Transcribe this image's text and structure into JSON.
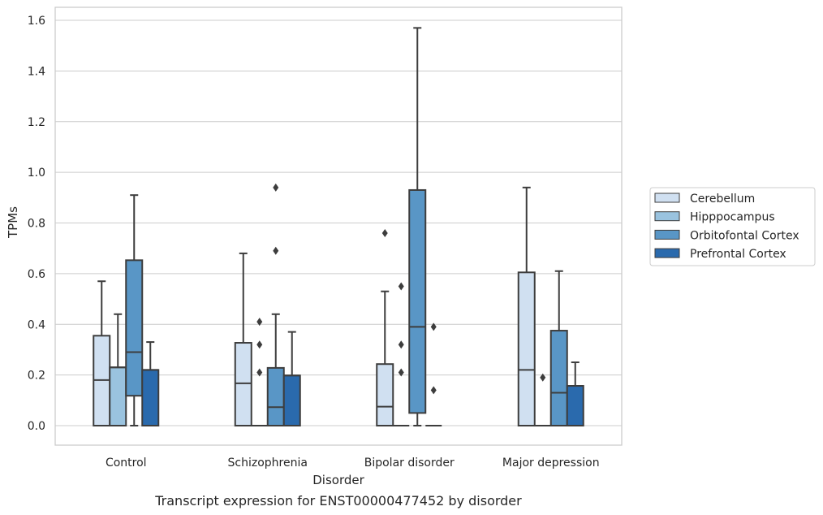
{
  "chart_data": {
    "type": "box",
    "caption": "Transcript expression for ENST00000477452 by disorder",
    "xlabel": "Disorder",
    "ylabel": "TPMs",
    "ylim": [
      -0.08,
      1.65
    ],
    "yticks": [
      0.0,
      0.2,
      0.4,
      0.6,
      0.8,
      1.0,
      1.2,
      1.4,
      1.6
    ],
    "ytick_labels": [
      "0.0",
      "0.2",
      "0.4",
      "0.6",
      "0.8",
      "1.0",
      "1.2",
      "1.4",
      "1.6"
    ],
    "grid": "horizontal",
    "legend_position": "right",
    "categories": [
      "Control",
      "Schizophrenia",
      "Bipolar disorder",
      "Major depression"
    ],
    "series": [
      {
        "name": "Cerebellum",
        "color": "#d0e0f1",
        "boxes": [
          {
            "whisker_low": 0.0,
            "q1": 0.0,
            "median": 0.18,
            "q3": 0.355,
            "whisker_high": 0.57,
            "outliers": []
          },
          {
            "whisker_low": 0.0,
            "q1": 0.0,
            "median": 0.167,
            "q3": 0.327,
            "whisker_high": 0.68,
            "outliers": []
          },
          {
            "whisker_low": 0.0,
            "q1": 0.0,
            "median": 0.075,
            "q3": 0.243,
            "whisker_high": 0.53,
            "outliers": [
              0.76
            ]
          },
          {
            "whisker_low": 0.0,
            "q1": 0.0,
            "median": 0.22,
            "q3": 0.605,
            "whisker_high": 0.94,
            "outliers": []
          }
        ]
      },
      {
        "name": "Hipppocampus",
        "color": "#9ac3df",
        "boxes": [
          {
            "whisker_low": 0.0,
            "q1": 0.0,
            "median": 0.23,
            "q3": 0.23,
            "whisker_high": 0.44,
            "outliers": []
          },
          {
            "whisker_low": 0.0,
            "q1": 0.0,
            "median": 0.0,
            "q3": 0.0,
            "whisker_high": 0.0,
            "outliers": [
              0.21,
              0.32,
              0.41
            ]
          },
          {
            "whisker_low": 0.0,
            "q1": 0.0,
            "median": 0.0,
            "q3": 0.0,
            "whisker_high": 0.0,
            "outliers": [
              0.21,
              0.32,
              0.55
            ]
          },
          {
            "whisker_low": 0.0,
            "q1": 0.0,
            "median": 0.0,
            "q3": 0.0,
            "whisker_high": 0.0,
            "outliers": [
              0.19
            ]
          }
        ]
      },
      {
        "name": "Orbitofontal Cortex",
        "color": "#5996c6",
        "boxes": [
          {
            "whisker_low": 0.0,
            "q1": 0.118,
            "median": 0.29,
            "q3": 0.653,
            "whisker_high": 0.91,
            "outliers": []
          },
          {
            "whisker_low": 0.0,
            "q1": 0.0,
            "median": 0.073,
            "q3": 0.228,
            "whisker_high": 0.44,
            "outliers": [
              0.69,
              0.94
            ]
          },
          {
            "whisker_low": 0.0,
            "q1": 0.05,
            "median": 0.39,
            "q3": 0.93,
            "whisker_high": 1.57,
            "outliers": []
          },
          {
            "whisker_low": 0.0,
            "q1": 0.0,
            "median": 0.13,
            "q3": 0.375,
            "whisker_high": 0.61,
            "outliers": []
          }
        ]
      },
      {
        "name": "Prefrontal Cortex",
        "color": "#2a6aad",
        "boxes": [
          {
            "whisker_low": 0.0,
            "q1": 0.0,
            "median": 0.22,
            "q3": 0.22,
            "whisker_high": 0.33,
            "outliers": []
          },
          {
            "whisker_low": 0.0,
            "q1": 0.0,
            "median": 0.198,
            "q3": 0.198,
            "whisker_high": 0.37,
            "outliers": []
          },
          {
            "whisker_low": 0.0,
            "q1": 0.0,
            "median": 0.0,
            "q3": 0.0,
            "whisker_high": 0.0,
            "outliers": [
              0.14,
              0.39
            ]
          },
          {
            "whisker_low": 0.0,
            "q1": 0.0,
            "median": 0.157,
            "q3": 0.157,
            "whisker_high": 0.25,
            "outliers": []
          }
        ]
      }
    ]
  }
}
